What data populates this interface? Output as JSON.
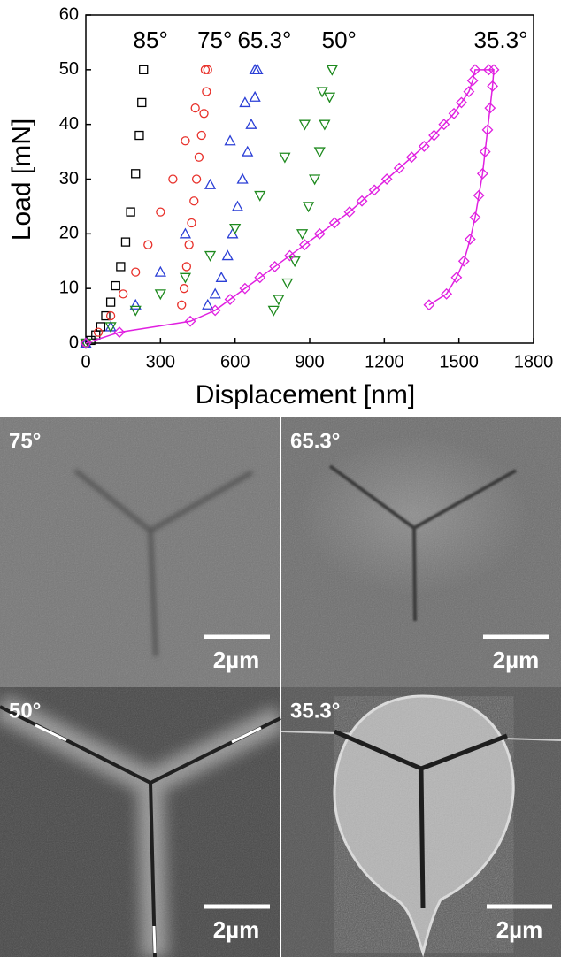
{
  "chart_data": {
    "type": "scatter",
    "x_label": "Displacement [nm]",
    "y_label": "Load [mN]",
    "xlim": [
      0,
      1800
    ],
    "xticks": [
      0,
      300,
      600,
      900,
      1200,
      1500,
      1800
    ],
    "ylim": [
      0,
      60
    ],
    "yticks": [
      0,
      10,
      20,
      30,
      40,
      50,
      60
    ],
    "series": [
      {
        "name": "85°",
        "color": "#000000",
        "marker": "square",
        "line": false,
        "x": [
          0,
          20,
          40,
          60,
          80,
          100,
          120,
          140,
          160,
          180,
          200,
          215,
          225,
          232
        ],
        "values": [
          0,
          0.5,
          1.5,
          3,
          5,
          7.5,
          10.5,
          14,
          18.5,
          24,
          31,
          38,
          44,
          50
        ]
      },
      {
        "name": "75°",
        "color": "#e8302a",
        "marker": "circle",
        "line": false,
        "x": [
          0,
          50,
          100,
          150,
          200,
          250,
          300,
          350,
          400,
          440,
          480,
          490,
          485,
          475,
          465,
          455,
          445,
          435,
          425,
          415,
          405,
          395,
          385
        ],
        "values": [
          0,
          2,
          5,
          9,
          13,
          18,
          24,
          30,
          37,
          43,
          50,
          50,
          46,
          42,
          38,
          34,
          30,
          26,
          22,
          18,
          14,
          10,
          7
        ]
      },
      {
        "name": "65.3°",
        "color": "#2b3fd6",
        "marker": "triangle-up",
        "line": false,
        "x": [
          0,
          100,
          200,
          300,
          400,
          500,
          580,
          640,
          680,
          690,
          680,
          665,
          650,
          630,
          610,
          590,
          570,
          545,
          520,
          490
        ],
        "values": [
          0,
          3,
          7,
          13,
          20,
          29,
          37,
          44,
          50,
          50,
          45,
          40,
          35,
          30,
          25,
          20,
          16,
          12,
          9,
          7
        ]
      },
      {
        "name": "50°",
        "color": "#1f8a1f",
        "marker": "triangle-down",
        "line": false,
        "x": [
          0,
          100,
          200,
          300,
          400,
          500,
          600,
          700,
          800,
          880,
          950,
          990,
          990,
          980,
          960,
          940,
          920,
          895,
          870,
          840,
          810,
          775,
          755
        ],
        "values": [
          0,
          3,
          6,
          9,
          12,
          16,
          21,
          27,
          34,
          40,
          46,
          50,
          50,
          45,
          40,
          35,
          30,
          25,
          20,
          15,
          11,
          8,
          6
        ]
      },
      {
        "name": "35.3°",
        "color": "#e020e0",
        "marker": "diamond",
        "line": true,
        "x": [
          0,
          135,
          420,
          520,
          580,
          640,
          700,
          760,
          820,
          880,
          940,
          1000,
          1060,
          1110,
          1160,
          1210,
          1260,
          1310,
          1360,
          1400,
          1440,
          1480,
          1510,
          1540,
          1555,
          1565,
          1620,
          1640,
          1635,
          1625,
          1615,
          1605,
          1595,
          1580,
          1565,
          1545,
          1520,
          1490,
          1450,
          1380
        ],
        "values": [
          0,
          2,
          4,
          6,
          8,
          10,
          12,
          14,
          16,
          18,
          20,
          22,
          24,
          26,
          28,
          30,
          32,
          34,
          36,
          38,
          40,
          42,
          44,
          46,
          48,
          50,
          50,
          50,
          47,
          43,
          39,
          35,
          31,
          27,
          23,
          19,
          15,
          12,
          9,
          7
        ]
      }
    ]
  },
  "panels": [
    {
      "label": "75°",
      "scale_bar": "2µm"
    },
    {
      "label": "65.3°",
      "scale_bar": "2µm"
    },
    {
      "label": "50°",
      "scale_bar": "2µm"
    },
    {
      "label": "35.3°",
      "scale_bar": "2µm"
    }
  ]
}
